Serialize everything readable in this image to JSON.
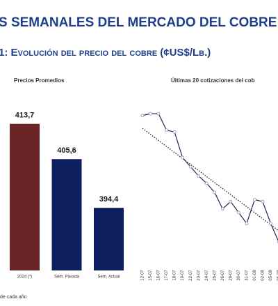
{
  "header": {
    "title": "S SEMANALES DEL MERCADO DEL COBRE",
    "subtitle": "1: Evolución del precio del cobre (¢US$/Lb.)"
  },
  "chart_data": [
    {
      "type": "bar",
      "title": "Precios Promedios",
      "categories": [
        "2024 (*)",
        "Sem. Pasada",
        "Sem. Actual"
      ],
      "values": [
        413.7,
        405.6,
        394.4
      ],
      "value_labels": [
        "413,7",
        "405,6",
        "394,4"
      ],
      "colors": [
        "#6b2426",
        "#0e1f5f",
        "#0e1f5f"
      ],
      "ylim": [
        380,
        430
      ]
    },
    {
      "type": "line",
      "title": "Últimas 20 cotizaciones del cob",
      "categories": [
        "12-07",
        "15-07",
        "16-07",
        "17-07",
        "18-07",
        "19-07",
        "22-07",
        "23-07",
        "24-07",
        "25-07",
        "26-07",
        "29-07",
        "30-07",
        "31-07",
        "01-08",
        "02-08",
        "05-08",
        "06-08"
      ],
      "values": [
        454,
        455,
        455,
        446,
        445,
        431,
        426,
        421,
        417,
        412,
        403,
        407,
        401,
        395,
        408,
        407,
        395,
        385
      ],
      "color": "#1f2a55",
      "trendline": [
        447,
        391
      ],
      "ylim": [
        380,
        460
      ]
    }
  ],
  "footnote": "de cada año"
}
